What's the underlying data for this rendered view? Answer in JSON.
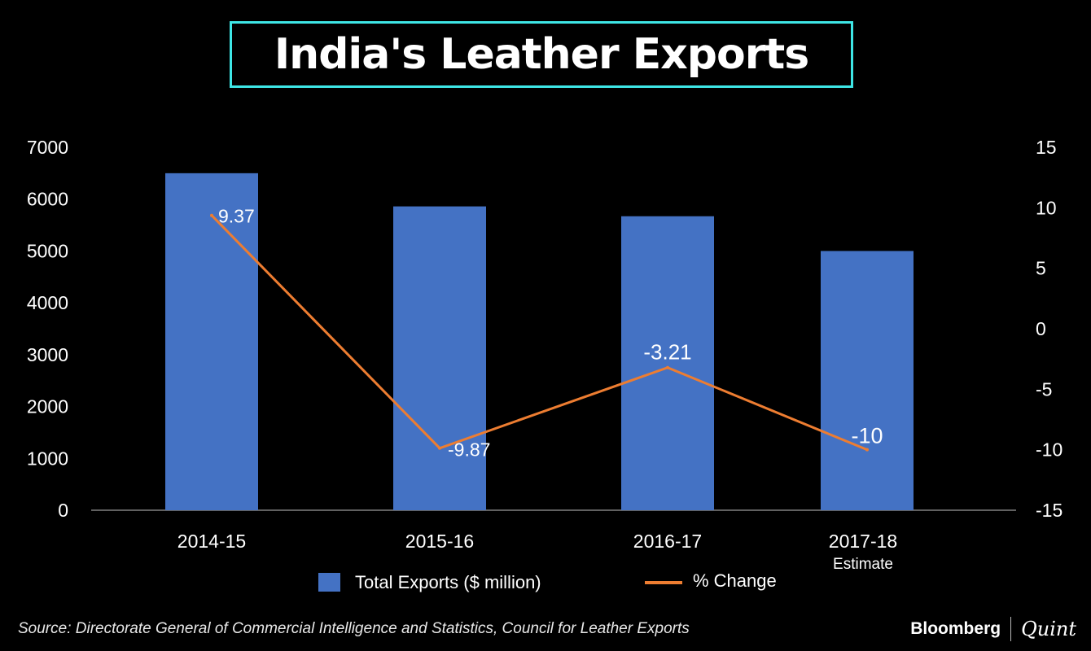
{
  "title": "India's Leather Exports",
  "source": "Source: Directorate General of Commercial Intelligence and Statistics, Council for Leather Exports",
  "brand": {
    "primary": "Bloomberg",
    "secondary": "Quint"
  },
  "colors": {
    "bar": "#4472c4",
    "line": "#ed7d31",
    "title_border": "#3ee6e6"
  },
  "chart_data": {
    "type": "bar+line",
    "categories": [
      "2014-15",
      "2015-16",
      "2016-17",
      "2017-18"
    ],
    "category_notes": [
      "",
      "",
      "",
      "Estimate"
    ],
    "series": [
      {
        "name": "Total Exports ($ million)",
        "type": "bar",
        "axis": "left",
        "values": [
          6500,
          5860,
          5670,
          5000
        ]
      },
      {
        "name": "% Change",
        "type": "line",
        "axis": "right",
        "values": [
          9.37,
          -9.87,
          -3.21,
          -10
        ],
        "labels": [
          "9.37",
          "-9.87",
          "-3.21",
          "-10"
        ]
      }
    ],
    "y_left": {
      "min": 0,
      "max": 7000,
      "ticks": [
        "0",
        "1000",
        "2000",
        "3000",
        "4000",
        "5000",
        "6000",
        "7000"
      ]
    },
    "y_right": {
      "min": -15,
      "max": 15,
      "ticks": [
        "-15",
        "-10",
        "-5",
        "0",
        "5",
        "10",
        "15"
      ]
    },
    "legend": {
      "position": "bottom"
    }
  }
}
